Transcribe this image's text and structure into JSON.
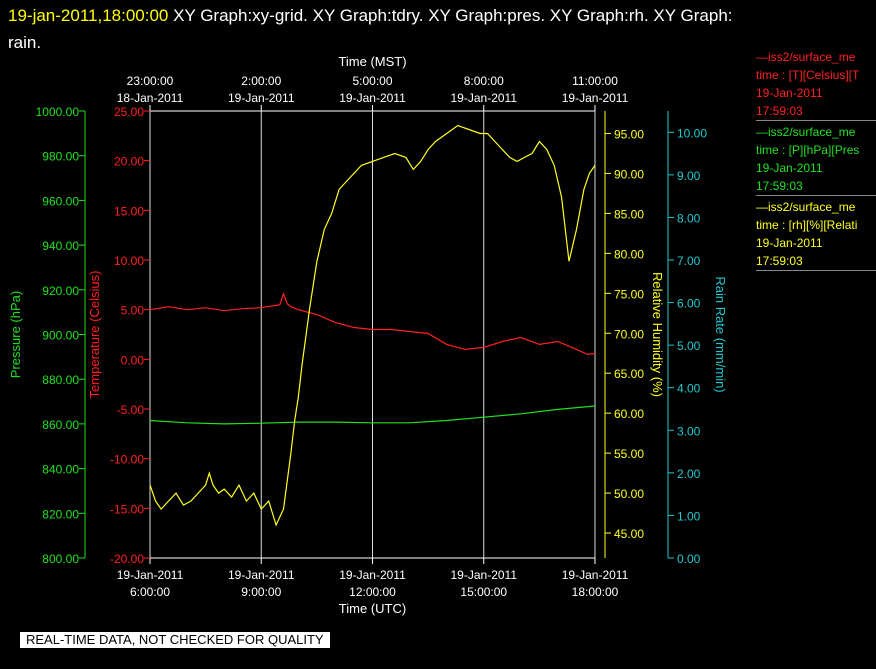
{
  "header": {
    "timestamp": "19-jan-2011,18:00:00",
    "graphs": "XY Graph:xy-grid.  XY Graph:tdry.  XY Graph:pres.  XY Graph:rh.  XY Graph:",
    "graphs_cont": "rain."
  },
  "quality_note": "REAL-TIME DATA, NOT CHECKED FOR QUALITY",
  "legend": [
    {
      "line1": "—iss2/surface_me",
      "line2": "time : [T][Celsius][T",
      "line3": "19-Jan-2011",
      "line4": "17:59:03",
      "color": "#ff2020"
    },
    {
      "line1": "—iss2/surface_me",
      "line2": "time : [P][hPa][Pres",
      "line3": "19-Jan-2011",
      "line4": "17:59:03",
      "color": "#20e020"
    },
    {
      "line1": "—iss2/surface_me",
      "line2": "time : [rh][%][Relati",
      "line3": "19-Jan-2011",
      "line4": "17:59:03",
      "color": "#ffff20"
    }
  ],
  "chart_data": {
    "type": "line",
    "top_axis": {
      "title": "Time (MST)",
      "ticks": [
        {
          "t": 0,
          "time": "23:00:00",
          "date": "18-Jan-2011"
        },
        {
          "t": 3,
          "time": "2:00:00",
          "date": "19-Jan-2011"
        },
        {
          "t": 6,
          "time": "5:00:00",
          "date": "19-Jan-2011"
        },
        {
          "t": 9,
          "time": "8:00:00",
          "date": "19-Jan-2011"
        },
        {
          "t": 12,
          "time": "11:00:00",
          "date": "19-Jan-2011"
        }
      ]
    },
    "bottom_axis": {
      "title": "Time (UTC)",
      "range": [
        0,
        12
      ],
      "ticks": [
        {
          "t": 0,
          "date": "19-Jan-2011",
          "time": "6:00:00"
        },
        {
          "t": 3,
          "date": "19-Jan-2011",
          "time": "9:00:00"
        },
        {
          "t": 6,
          "date": "19-Jan-2011",
          "time": "12:00:00"
        },
        {
          "t": 9,
          "date": "19-Jan-2011",
          "time": "15:00:00"
        },
        {
          "t": 12,
          "date": "19-Jan-2011",
          "time": "18:00:00"
        }
      ]
    },
    "grid": "vertical",
    "axes": [
      {
        "id": "pres",
        "title": "Pressure (hPa)",
        "color": "#20e020",
        "min": 800,
        "max": 1000,
        "ticks": [
          "800.00",
          "820.00",
          "840.00",
          "860.00",
          "880.00",
          "900.00",
          "920.00",
          "940.00",
          "960.00",
          "980.00",
          "1000.00"
        ]
      },
      {
        "id": "temp",
        "title": "Temperature (Celsius)",
        "color": "#ff2020",
        "min": -20,
        "max": 25,
        "ticks": [
          "-20.00",
          "-15.00",
          "-10.00",
          "-5.00",
          "0.00",
          "5.00",
          "10.00",
          "15.00",
          "20.00",
          "25.00"
        ]
      },
      {
        "id": "rh",
        "title": "Relative Humidity (%)",
        "color": "#ffff20",
        "min": 41.875,
        "max": 97.8125,
        "ticks": [
          "45.00",
          "50.00",
          "55.00",
          "60.00",
          "65.00",
          "70.00",
          "75.00",
          "80.00",
          "85.00",
          "90.00",
          "95.00"
        ]
      },
      {
        "id": "rain",
        "title": "Rain Rate (mm/min)",
        "color": "#20c8d0",
        "min": 0,
        "max": 10.5,
        "ticks": [
          "0.00",
          "1.00",
          "2.00",
          "3.00",
          "4.00",
          "5.00",
          "6.00",
          "7.00",
          "8.00",
          "9.00",
          "10.00"
        ]
      }
    ],
    "series": [
      {
        "axis": "temp",
        "color": "#ff2020",
        "x": [
          0,
          0.5,
          1.0,
          1.5,
          2.0,
          2.5,
          3.0,
          3.5,
          3.6,
          3.7,
          3.8,
          4.0,
          4.5,
          5.0,
          5.5,
          6.0,
          6.5,
          7.0,
          7.5,
          8.0,
          8.5,
          9.0,
          9.5,
          10.0,
          10.5,
          11.0,
          11.5,
          11.8,
          12.0
        ],
        "y": [
          5.0,
          5.3,
          5.0,
          5.2,
          4.9,
          5.1,
          5.2,
          5.5,
          6.6,
          5.6,
          5.3,
          5.0,
          4.5,
          3.7,
          3.2,
          3.0,
          3.0,
          2.8,
          2.6,
          1.5,
          1.0,
          1.2,
          1.8,
          2.2,
          1.5,
          1.8,
          1.0,
          0.5,
          0.6
        ]
      },
      {
        "axis": "pres",
        "color": "#20e020",
        "x": [
          0,
          1.0,
          2.0,
          3.0,
          4.0,
          5.0,
          6.0,
          7.0,
          8.0,
          9.0,
          10.0,
          11.0,
          12.0
        ],
        "y": [
          861.5,
          860.5,
          860.0,
          860.3,
          860.8,
          860.8,
          860.5,
          860.5,
          861.5,
          863.0,
          864.5,
          866.5,
          868.0
        ]
      },
      {
        "axis": "rh",
        "color": "#ffff20",
        "x": [
          0,
          0.15,
          0.3,
          0.5,
          0.7,
          0.9,
          1.1,
          1.3,
          1.5,
          1.6,
          1.7,
          1.85,
          2.0,
          2.2,
          2.4,
          2.6,
          2.8,
          3.0,
          3.2,
          3.4,
          3.6,
          3.8,
          3.9,
          4.0,
          4.1,
          4.3,
          4.5,
          4.7,
          4.9,
          5.1,
          5.3,
          5.5,
          5.7,
          6.0,
          6.3,
          6.6,
          6.9,
          7.1,
          7.3,
          7.5,
          7.7,
          8.0,
          8.3,
          8.6,
          8.9,
          9.1,
          9.3,
          9.5,
          9.7,
          9.9,
          10.1,
          10.3,
          10.5,
          10.7,
          10.9,
          11.1,
          11.3,
          11.5,
          11.7,
          11.85,
          12.0
        ],
        "y": [
          51,
          49,
          48,
          49,
          50,
          48.5,
          49,
          50,
          51,
          52.5,
          51,
          50,
          50.5,
          49.5,
          51,
          49,
          50,
          48,
          49,
          46,
          48,
          55,
          59,
          62,
          66,
          73,
          79,
          83,
          85,
          88,
          89,
          90,
          91,
          91.5,
          92,
          92.5,
          92,
          90.5,
          91.5,
          93,
          94,
          95,
          96,
          95.5,
          95,
          95,
          94,
          93,
          92,
          91.5,
          92,
          92.5,
          94,
          93,
          91,
          87,
          79,
          83,
          88,
          90,
          91
        ]
      }
    ]
  }
}
